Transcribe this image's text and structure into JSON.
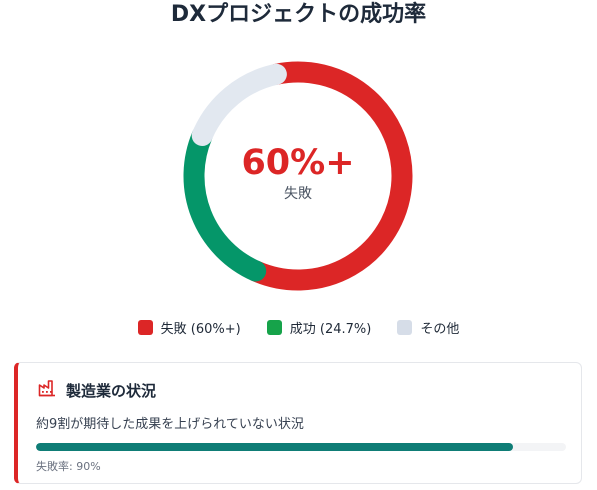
{
  "title": "DXプロジェクトの成功率",
  "center": {
    "value": "60%+",
    "label": "失敗"
  },
  "legend": [
    {
      "label": "失敗 (60%+)",
      "color": "#dc2626"
    },
    {
      "label": "成功 (24.7%)",
      "color": "#16a34a"
    },
    {
      "label": "その他",
      "color": "#d6dde8"
    }
  ],
  "chart_data": {
    "type": "pie",
    "title": "DXプロジェクトの成功率",
    "series": [
      {
        "name": "失敗",
        "value": 60,
        "color": "#dc2626"
      },
      {
        "name": "成功",
        "value": 24.7,
        "color": "#059669"
      },
      {
        "name": "その他",
        "value": 15.3,
        "color": "#e2e8f0"
      }
    ]
  },
  "card": {
    "icon": "factory-icon",
    "title": "製造業の状況",
    "description": "約9割が期待した成果を上げられていない状況",
    "progress": 0.9,
    "progress_color": "#0f7d76",
    "note": "失敗率: 90%"
  }
}
